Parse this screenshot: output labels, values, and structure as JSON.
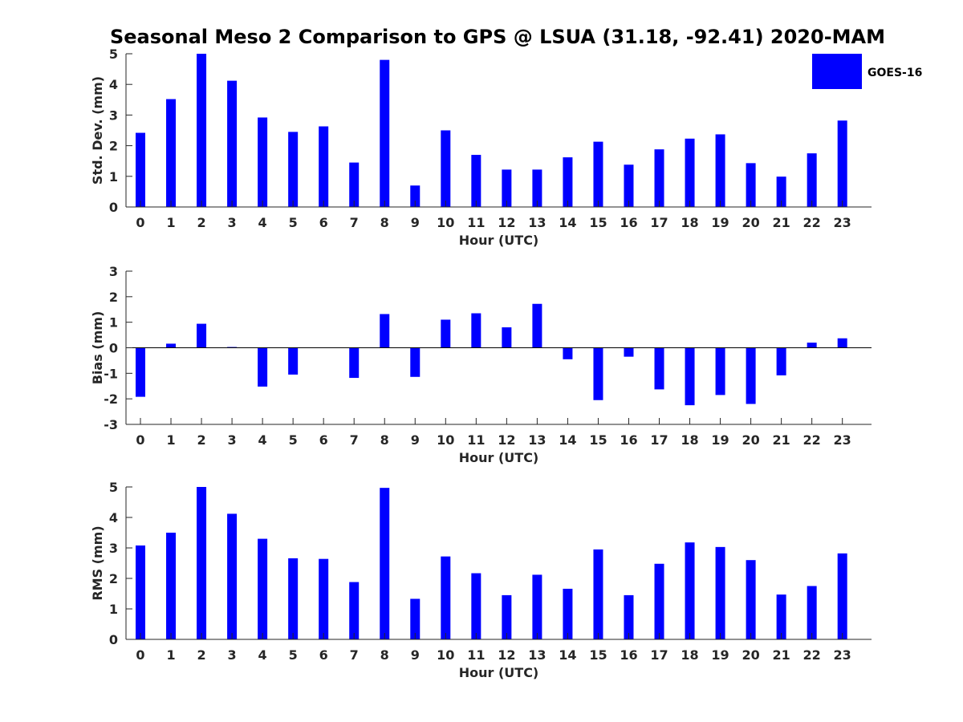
{
  "figure_title": "Seasonal Meso 2 Comparison to GPS @ LSUA (31.18, -92.41) 2020-MAM",
  "legend": {
    "label": "GOES-16",
    "color": "#0000FF"
  },
  "chart_data": [
    {
      "type": "bar",
      "name": "std-dev",
      "xlabel": "Hour (UTC)",
      "ylabel": "Std. Dev. (mm)",
      "ylim": [
        0,
        5
      ],
      "yticks": [
        0,
        1,
        2,
        3,
        4,
        5
      ],
      "categories": [
        "0",
        "1",
        "2",
        "3",
        "4",
        "5",
        "6",
        "7",
        "8",
        "9",
        "10",
        "11",
        "12",
        "13",
        "14",
        "15",
        "16",
        "17",
        "18",
        "19",
        "20",
        "21",
        "22",
        "23"
      ],
      "series": [
        {
          "name": "GOES-16",
          "values": [
            2.42,
            3.52,
            5.0,
            4.12,
            2.92,
            2.45,
            2.63,
            1.45,
            4.8,
            0.7,
            2.5,
            1.7,
            1.22,
            1.22,
            1.62,
            2.13,
            1.38,
            1.88,
            2.23,
            2.37,
            1.43,
            0.99,
            1.75,
            2.82
          ]
        }
      ]
    },
    {
      "type": "bar",
      "name": "bias",
      "xlabel": "Hour (UTC)",
      "ylabel": "Bias (mm)",
      "ylim": [
        -3,
        3
      ],
      "yticks": [
        -3,
        -2,
        -1,
        0,
        1,
        2,
        3
      ],
      "zero_line": true,
      "categories": [
        "0",
        "1",
        "2",
        "3",
        "4",
        "5",
        "6",
        "7",
        "8",
        "9",
        "10",
        "11",
        "12",
        "13",
        "14",
        "15",
        "16",
        "17",
        "18",
        "19",
        "20",
        "21",
        "22",
        "23"
      ],
      "series": [
        {
          "name": "GOES-16",
          "values": [
            -1.92,
            0.16,
            0.94,
            0.03,
            -1.52,
            -1.05,
            0.0,
            -1.18,
            1.32,
            -1.14,
            1.1,
            1.35,
            0.8,
            1.72,
            -0.45,
            -2.05,
            -0.35,
            -1.63,
            -2.25,
            -1.85,
            -2.2,
            -1.08,
            0.2,
            0.37
          ]
        }
      ]
    },
    {
      "type": "bar",
      "name": "rms",
      "xlabel": "Hour (UTC)",
      "ylabel": "RMS (mm)",
      "ylim": [
        0,
        5
      ],
      "yticks": [
        0,
        1,
        2,
        3,
        4,
        5
      ],
      "categories": [
        "0",
        "1",
        "2",
        "3",
        "4",
        "5",
        "6",
        "7",
        "8",
        "9",
        "10",
        "11",
        "12",
        "13",
        "14",
        "15",
        "16",
        "17",
        "18",
        "19",
        "20",
        "21",
        "22",
        "23"
      ],
      "series": [
        {
          "name": "GOES-16",
          "values": [
            3.08,
            3.5,
            5.0,
            4.12,
            3.3,
            2.66,
            2.64,
            1.88,
            4.97,
            1.33,
            2.72,
            2.17,
            1.45,
            2.12,
            1.66,
            2.95,
            1.45,
            2.48,
            3.18,
            3.03,
            2.6,
            1.47,
            1.75,
            2.82
          ]
        }
      ]
    }
  ]
}
